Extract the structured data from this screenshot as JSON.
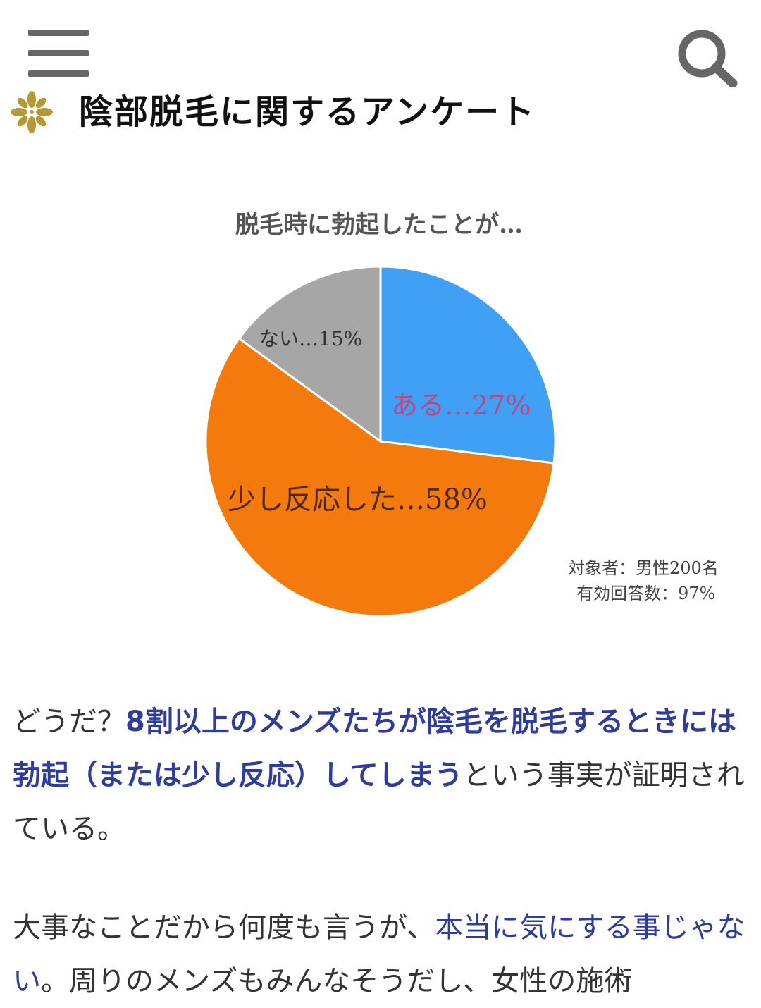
{
  "header": {
    "menu_icon": "hamburger-menu-icon",
    "search_icon": "search-icon"
  },
  "heading": {
    "icon": "gold-flower-ornament-icon",
    "title": "陰部脱毛に関するアンケート"
  },
  "chart_data": {
    "type": "pie",
    "title": "脱毛時に勃起したことが…",
    "slices": [
      {
        "label": "ある…27%",
        "value": 27,
        "color": "#3fa0f5",
        "label_color": "#c0467e"
      },
      {
        "label": "少し反応した…58%",
        "value": 58,
        "color": "#f47a0e",
        "label_color": "#4a2a1a"
      },
      {
        "label": "ない…15%",
        "value": 15,
        "color": "#a6a6a6",
        "label_color": "#333333"
      }
    ],
    "annotations": [
      "対象者：男性200名",
      "有効回答数：97%"
    ]
  },
  "paragraph1": {
    "s1": "どうだ？",
    "s2": "8割以上のメンズたちが陰毛を脱毛するときには勃起（または少し反応）してしまう",
    "s3": "という事実が証明されている。"
  },
  "paragraph2": {
    "s1": "大事なことだから何度も言うが、",
    "s2": "本当に気にする事じゃない",
    "s3": "。周りのメンズもみんなそうだし、女性の施術"
  }
}
